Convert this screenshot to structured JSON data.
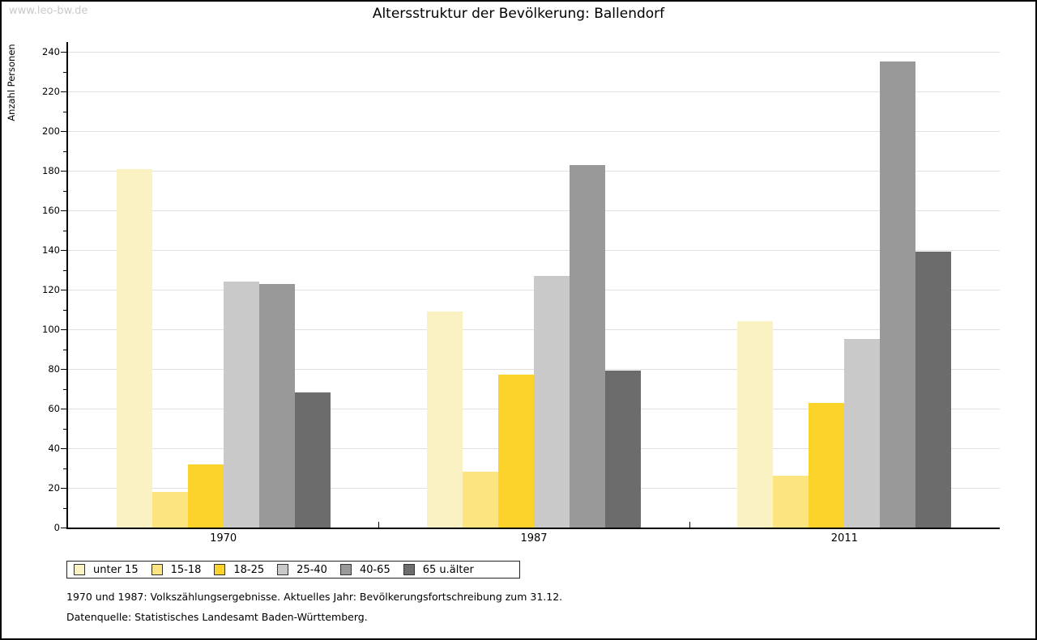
{
  "watermark": "www.leo-bw.de",
  "title": "Altersstruktur der Bevölkerung: Ballendorf",
  "footnotes": {
    "line1": "1970 und 1987: Volkszählungsergebnisse. Aktuelles Jahr: Bevölkerungsfortschreibung zum 31.12.",
    "line2": "Datenquelle: Statistisches Landesamt Baden-Württemberg."
  },
  "chart_data": {
    "type": "bar",
    "title": "Altersstruktur der Bevölkerung: Ballendorf",
    "xlabel": "",
    "ylabel": "Anzahl Personen",
    "ylim": [
      0,
      240
    ],
    "ytick_step": 20,
    "grid": "horizontal-major",
    "legend_position": "bottom-left",
    "categories": [
      "1970",
      "1987",
      "2011"
    ],
    "series": [
      {
        "name": "unter 15",
        "color": "#fbf2c4",
        "values": [
          181,
          109,
          104
        ]
      },
      {
        "name": "15-18",
        "color": "#fce580",
        "values": [
          18,
          28,
          26
        ]
      },
      {
        "name": "18-25",
        "color": "#fcd32b",
        "values": [
          32,
          77,
          63
        ]
      },
      {
        "name": "25-40",
        "color": "#c9c9c9",
        "values": [
          124,
          127,
          95
        ]
      },
      {
        "name": "40-65",
        "color": "#999999",
        "values": [
          123,
          183,
          235
        ]
      },
      {
        "name": "65 u.älter",
        "color": "#6c6c6c",
        "values": [
          68,
          79,
          139
        ]
      }
    ]
  }
}
